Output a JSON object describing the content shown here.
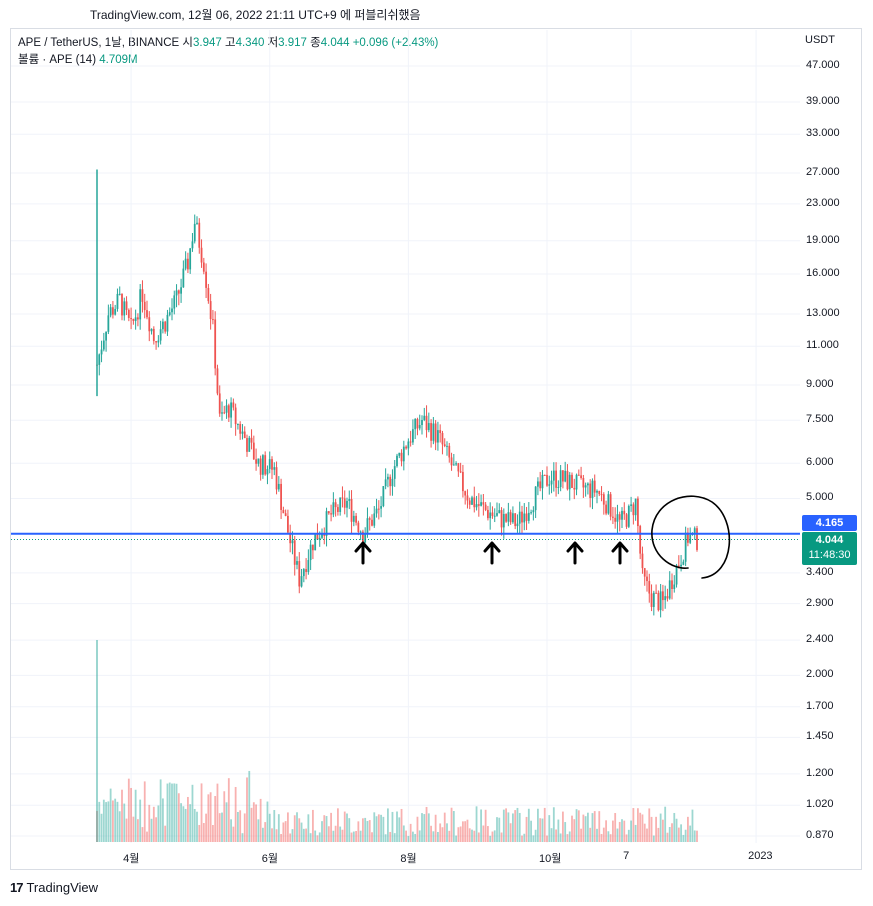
{
  "attribution": "TradingView.com, 12월 06, 2022 21:11 UTC+9 에 퍼블리쉬했음",
  "symbol": {
    "title": "APE / TetherUS, 1날, BINANCE",
    "open_label": "시",
    "open": "3.947",
    "high_label": "고",
    "high": "4.340",
    "low_label": "저",
    "low": "3.917",
    "close_label": "종",
    "close": "4.044",
    "change": "+0.096 (+2.43%)"
  },
  "volume": {
    "label": "볼륨 · APE (14)",
    "value": "4.709M"
  },
  "currency": "USDT",
  "footer": {
    "logo": "17",
    "brand": "TradingView"
  },
  "price_tags": {
    "line": {
      "value": "4.165",
      "color": "#2962ff"
    },
    "last": {
      "value": "4.044",
      "countdown": "11:48:30",
      "color": "#089981"
    }
  },
  "colors": {
    "up": "#26a69a",
    "down": "#ef5350",
    "grid": "#f0f3fa",
    "line": "#2962ff"
  },
  "chart_data": {
    "type": "candlestick",
    "y_scale": "log",
    "y_ticks": [
      "47.000",
      "39.000",
      "33.000",
      "27.000",
      "23.000",
      "19.000",
      "16.000",
      "13.000",
      "11.000",
      "9.000",
      "7.500",
      "6.000",
      "5.000",
      "3.400",
      "2.900",
      "2.400",
      "2.000",
      "1.700",
      "1.450",
      "1.200",
      "1.020",
      "0.870"
    ],
    "x_ticks": [
      "4월",
      "6월",
      "8월",
      "10월",
      "7",
      "2023"
    ],
    "horizontal_line": 4.165,
    "annotations": {
      "arrows_up": 4,
      "circle": "around recent candles near 4.2"
    },
    "series": [
      {
        "x": "2022-03-17",
        "close": 10.0
      },
      {
        "x": "2022-03-22",
        "close": 13.0
      },
      {
        "x": "2022-03-27",
        "close": 14.0
      },
      {
        "x": "2022-04-01",
        "close": 12.0
      },
      {
        "x": "2022-04-06",
        "close": 14.5
      },
      {
        "x": "2022-04-11",
        "close": 11.5
      },
      {
        "x": "2022-04-16",
        "close": 12.5
      },
      {
        "x": "2022-04-21",
        "close": 14.0
      },
      {
        "x": "2022-04-26",
        "close": 17.0
      },
      {
        "x": "2022-04-29",
        "close": 21.0
      },
      {
        "x": "2022-05-03",
        "close": 17.0
      },
      {
        "x": "2022-05-07",
        "close": 12.0
      },
      {
        "x": "2022-05-10",
        "close": 7.5
      },
      {
        "x": "2022-05-14",
        "close": 8.0
      },
      {
        "x": "2022-05-20",
        "close": 7.0
      },
      {
        "x": "2022-05-27",
        "close": 6.0
      },
      {
        "x": "2022-06-03",
        "close": 5.8
      },
      {
        "x": "2022-06-10",
        "close": 4.0
      },
      {
        "x": "2022-06-14",
        "close": 3.3
      },
      {
        "x": "2022-06-20",
        "close": 4.0
      },
      {
        "x": "2022-06-28",
        "close": 4.6
      },
      {
        "x": "2022-07-05",
        "close": 4.9
      },
      {
        "x": "2022-07-12",
        "close": 4.2
      },
      {
        "x": "2022-07-19",
        "close": 4.7
      },
      {
        "x": "2022-07-25",
        "close": 5.8
      },
      {
        "x": "2022-08-01",
        "close": 6.8
      },
      {
        "x": "2022-08-07",
        "close": 7.5
      },
      {
        "x": "2022-08-14",
        "close": 6.9
      },
      {
        "x": "2022-08-21",
        "close": 5.8
      },
      {
        "x": "2022-08-28",
        "close": 5.0
      },
      {
        "x": "2022-09-04",
        "close": 4.7
      },
      {
        "x": "2022-09-11",
        "close": 4.5
      },
      {
        "x": "2022-09-18",
        "close": 4.4
      },
      {
        "x": "2022-09-25",
        "close": 5.0
      },
      {
        "x": "2022-10-02",
        "close": 5.6
      },
      {
        "x": "2022-10-09",
        "close": 5.5
      },
      {
        "x": "2022-10-16",
        "close": 5.3
      },
      {
        "x": "2022-10-23",
        "close": 5.2
      },
      {
        "x": "2022-10-30",
        "close": 4.7
      },
      {
        "x": "2022-11-02",
        "close": 4.4
      },
      {
        "x": "2022-11-06",
        "close": 4.6
      },
      {
        "x": "2022-11-09",
        "close": 4.9
      },
      {
        "x": "2022-11-12",
        "close": 3.3
      },
      {
        "x": "2022-11-16",
        "close": 3.0
      },
      {
        "x": "2022-11-21",
        "close": 2.9
      },
      {
        "x": "2022-11-25",
        "close": 3.3
      },
      {
        "x": "2022-11-29",
        "close": 3.7
      },
      {
        "x": "2022-12-02",
        "close": 4.1
      },
      {
        "x": "2022-12-06",
        "close": 4.044
      }
    ]
  }
}
